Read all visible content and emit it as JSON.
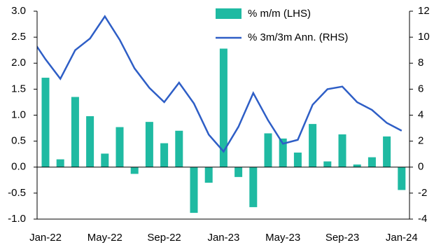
{
  "chart_data": {
    "type": "bar-line",
    "categories": [
      null,
      "Jan-22",
      null,
      null,
      null,
      "May-22",
      null,
      null,
      null,
      "Sep-22",
      null,
      null,
      null,
      "Jan-23",
      null,
      null,
      null,
      "May-23",
      null,
      null,
      null,
      "Sep-23",
      null,
      null,
      null,
      "Jan-24"
    ],
    "series": [
      {
        "name": "% m/m (LHS)",
        "type": "bar",
        "color": "#1fbaa2",
        "values": [
          null,
          1.72,
          0.15,
          1.35,
          0.98,
          0.26,
          0.77,
          -0.13,
          0.87,
          0.46,
          0.7,
          -0.88,
          -0.3,
          2.28,
          -0.19,
          -0.77,
          0.65,
          0.55,
          0.28,
          0.83,
          0.11,
          0.63,
          0.05,
          0.19,
          0.59,
          -0.44
        ]
      },
      {
        "name": "% 3m/3m Ann. (RHS)",
        "type": "line",
        "axis": "y2",
        "color": "#2e5ec6",
        "values": [
          10.0,
          8.3,
          6.8,
          9.0,
          9.9,
          11.6,
          9.8,
          7.6,
          6.1,
          5.0,
          6.5,
          4.9,
          2.5,
          1.2,
          3.1,
          5.7,
          3.6,
          1.8,
          2.1,
          4.8,
          6.0,
          6.2,
          5.0,
          4.4,
          3.4,
          2.8
        ]
      }
    ],
    "ylim": [
      -1.0,
      3.0
    ],
    "yticks": [
      {
        "value": -1,
        "label": "-1.0"
      },
      {
        "value": -0.5,
        "label": "-0.5"
      },
      {
        "value": 0,
        "label": "0.0"
      },
      {
        "value": 0.5,
        "label": "0.5"
      },
      {
        "value": 1,
        "label": "1.0"
      },
      {
        "value": 1.5,
        "label": "1.5"
      },
      {
        "value": 2,
        "label": "2.0"
      },
      {
        "value": 2.5,
        "label": "2.5"
      },
      {
        "value": 3,
        "label": "3.0"
      }
    ],
    "y2lim": [
      -4,
      12
    ],
    "y2ticks": [
      -4,
      -2,
      0,
      2,
      4,
      6,
      8,
      10,
      12
    ]
  }
}
